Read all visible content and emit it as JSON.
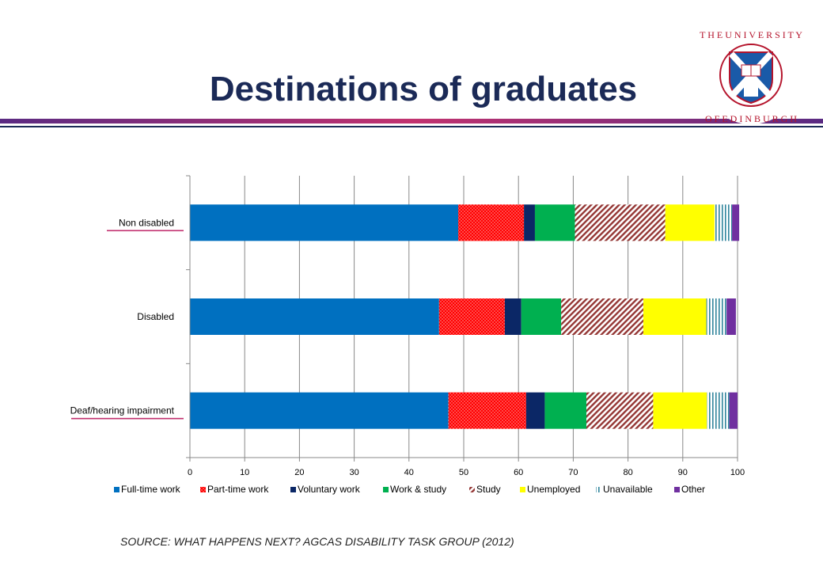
{
  "page": {
    "title": "Destinations of graduates",
    "source": "SOURCE: WHAT HAPPENS NEXT? AGCAS DISABILITY TASK GROUP (2012)",
    "logo_text": "THE UNIVERSITY OF EDINBURGH",
    "accent_colors": {
      "navy": "#1b2a57",
      "magenta": "#c2326f",
      "purple": "#5a2a82"
    }
  },
  "chart_data": {
    "type": "bar",
    "orientation": "horizontal",
    "stacked": true,
    "categories": [
      "Non disabled",
      "Disabled",
      "Deaf/hearing impairment"
    ],
    "xlim": [
      0,
      100
    ],
    "xticks": [
      0,
      10,
      20,
      30,
      40,
      50,
      60,
      70,
      80,
      90,
      100
    ],
    "grid": true,
    "legend_position": "bottom",
    "series": [
      {
        "name": "Full-time work",
        "color": "#0070c0",
        "pattern": "solid",
        "values": [
          49.0,
          45.5,
          47.2
        ]
      },
      {
        "name": "Part-time work",
        "color": "#ff0000",
        "pattern": "dots",
        "values": [
          12.0,
          12.0,
          14.2
        ]
      },
      {
        "name": "Voluntary work",
        "color": "#0b2766",
        "pattern": "solid",
        "values": [
          2.0,
          3.0,
          3.4
        ]
      },
      {
        "name": "Work & study",
        "color": "#00b050",
        "pattern": "solid",
        "values": [
          7.3,
          7.3,
          7.6
        ]
      },
      {
        "name": "Study",
        "color": "#c0504d",
        "pattern": "diagonal",
        "values": [
          16.5,
          15.0,
          12.2
        ]
      },
      {
        "name": "Unemployed",
        "color": "#ffff00",
        "pattern": "solid",
        "values": [
          9.0,
          11.5,
          9.8
        ]
      },
      {
        "name": "Unavailable",
        "color": "#4bacc6",
        "pattern": "vertical",
        "values": [
          3.2,
          3.7,
          4.1
        ]
      },
      {
        "name": "Other",
        "color": "#7030a0",
        "pattern": "solid",
        "values": [
          1.3,
          1.7,
          1.5
        ]
      }
    ]
  }
}
